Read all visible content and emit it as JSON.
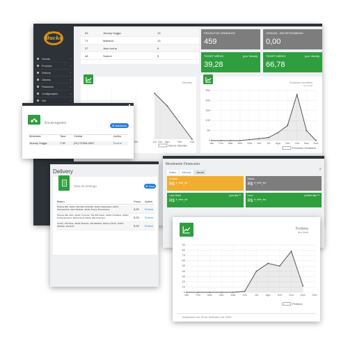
{
  "dashboard": {
    "brand": "Bucks",
    "sidebar": [
      {
        "icon": "cart-icon",
        "label": "Vendas"
      },
      {
        "icon": "box-icon",
        "label": "Produtos"
      },
      {
        "icon": "delivery-icon",
        "label": "Delivery"
      },
      {
        "icon": "users-icon",
        "label": "Clientes"
      },
      {
        "icon": "dollar-icon",
        "label": "Financeiro"
      },
      {
        "icon": "gear-icon",
        "label": "Configurações"
      },
      {
        "icon": "exit-icon",
        "label": "Sair"
      }
    ],
    "table_rows": [
      {
        "id": "53",
        "name": "Jhonny Vugga",
        "qty": "13"
      },
      {
        "id": "71",
        "name": "Matheus",
        "qty": "13"
      },
      {
        "id": "37",
        "name": "Jean rocha",
        "qty": "6"
      },
      {
        "id": "48",
        "name": "Samuri",
        "qty": "5"
      }
    ],
    "kpis": [
      {
        "label": "PRODUTOS VENDIDOS",
        "sub": "",
        "value": "459",
        "color": "#7d7d7d"
      },
      {
        "label": "VENDAS - EM RETIRAMENO",
        "sub": "",
        "value": "0,00",
        "color": "#7d7d7d"
      },
      {
        "label": "TICKET MÉDIO",
        "sub": "(por Venda)",
        "value": "39,28",
        "color": "#2e9e3e"
      },
      {
        "label": "TICKET MÉDIO",
        "sub": "(por Venda)",
        "value": "66,78",
        "color": "#2e9e3e"
      }
    ],
    "chart_left": {
      "title": "Clientes",
      "legend": "Novos Clientes",
      "categories": [
        "Jul",
        "Ago",
        "Set",
        "Out"
      ],
      "values": [
        55,
        40,
        20,
        0
      ]
    },
    "chart_right": {
      "title": "Produtos vendidos",
      "subtitle": "Ano Atual",
      "legend": "Produtos Vendidos",
      "categories": [
        "Jan",
        "Fev",
        "Mar",
        "Abr",
        "Mai",
        "Jun",
        "Jul",
        "Ago",
        "Set",
        "Out",
        "Nov",
        "Dez"
      ],
      "values": [
        0,
        0,
        0,
        0,
        5,
        10,
        15,
        40,
        75,
        230,
        50,
        0
      ],
      "y_ticks": [
        "0",
        "50",
        "100",
        "150",
        "200",
        "250"
      ]
    }
  },
  "encarregados": {
    "title": "Encarregados",
    "add_button": "Adicionar",
    "columns": [
      "Motorista",
      "Taxa",
      "Celular",
      "Ações"
    ],
    "rows": [
      {
        "name": "Jhonny Vugga",
        "fee": "7,00",
        "phone": "(21) 97645-2847",
        "action": "Excluir"
      }
    ]
  },
  "delivery": {
    "heading": "Delivery",
    "card_title": "Taxa de Entrega",
    "add_button": "Taxa",
    "columns": [
      "Bairro",
      "Preço",
      "Ações"
    ],
    "rows": [
      {
        "text": "Pessoa Mar, Jardim Vila São Cristovão, Jardim Itaperapuã, Jardim Sumarezinho, Itaim Paulista, Jardim Ruyce, Bonsucesso",
        "price": "5,00",
        "action": "Excluir"
      },
      {
        "text": "Pessoa São João, Jardim Universo, Vila São Paulo, Jardim Fortaleza, Jardim Nossa Senhora, Jardim Nova Vitória, São Francisco",
        "price": "5,00",
        "action": "Excluir"
      },
      {
        "text": "Centro, Vila Nova, Jardim Rosana, Vila Atlântica, Parque Carlos, Jardim Paulista, Vila Ruth",
        "price": "5,00",
        "action": "Excluir"
      }
    ]
  },
  "financeiro": {
    "title": "Movimento Financeiro",
    "tabs": [
      "Diário",
      "Mensal",
      "Anual"
    ],
    "close": "×",
    "cards": [
      {
        "label": "Entradas",
        "sub": "",
        "value": "R$ *.***,**",
        "color": "#f0ad2e"
      },
      {
        "label": "Saídas",
        "sub": "",
        "value": "R$ *.***,**",
        "color": "#7d7d7d"
      },
      {
        "label": "Lucro Diário",
        "sub": "(pior dia) ***",
        "value": "R$ *.***,**",
        "color": "#2e9e3e"
      },
      {
        "label": "Lucro",
        "sub": "(melhor dia) ***",
        "value": "R$ *.***,**",
        "color": "#2e9e3e"
      }
    ]
  },
  "pedidos": {
    "title": "Pedidos",
    "subtitle": "Ano Atual",
    "legend": "Pedidos",
    "footer": "Atualizado em 30 de Setembro de 2020"
  },
  "chart_data": {
    "type": "line",
    "title": "Pedidos",
    "subtitle": "Ano Atual",
    "categories": [
      "Jan",
      "Fev",
      "Mar",
      "Abr",
      "Mai",
      "Jun",
      "Jul",
      "Ago",
      "Set",
      "Out",
      "Nov",
      "Dez"
    ],
    "series": [
      {
        "name": "Pedidos",
        "values": [
          0,
          0,
          0,
          0,
          0,
          2,
          40,
          55,
          50,
          78,
          12,
          null
        ]
      }
    ],
    "ylim": [
      0,
      90
    ],
    "y_ticks": [
      0,
      10,
      20,
      30,
      40,
      50,
      60,
      70,
      80,
      90
    ],
    "grid": true,
    "legend_position": "bottom-right"
  }
}
